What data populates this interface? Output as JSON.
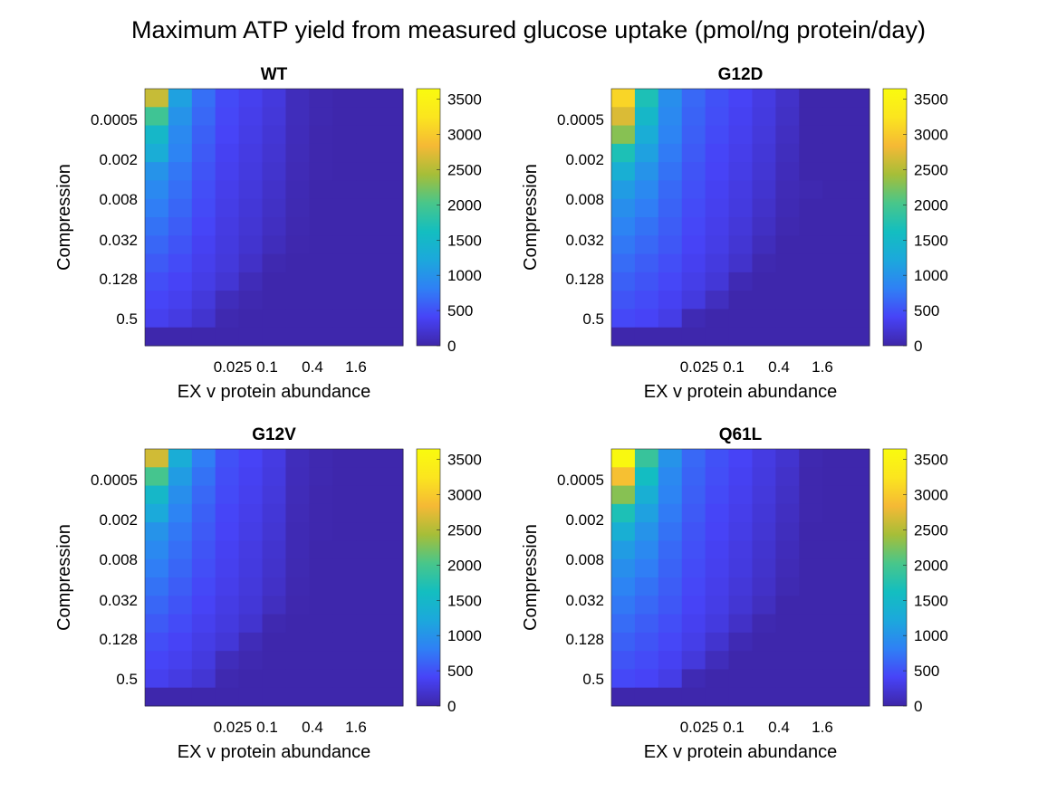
{
  "figure_title": "Maximum ATP yield from measured glucose uptake (pmol/ng protein/day)",
  "colormap": [
    "#3e26a8",
    "#4743f7",
    "#2f80f5",
    "#1ca8dc",
    "#13bec0",
    "#49c68a",
    "#a6be38",
    "#f5b935",
    "#fbe51f",
    "#f9fb0e"
  ],
  "chart_data": [
    {
      "type": "heatmap",
      "title": "WT",
      "xlabel": "EX v protein abundance",
      "ylabel": "Compression",
      "xticklabels": [
        "0.025",
        "0.1",
        "0.4",
        "1.6"
      ],
      "yticklabels": [
        "0.0005",
        "0.002",
        "0.008",
        "0.032",
        "0.128",
        "0.5"
      ],
      "colorbar": {
        "ticks": [
          "0",
          "500",
          "1000",
          "1500",
          "2000",
          "2500",
          "3000",
          "3500"
        ],
        "clim": [
          0,
          3650
        ]
      },
      "z": [
        [
          2600,
          1150,
          700,
          450,
          360,
          270,
          100,
          40,
          20,
          20,
          20
        ],
        [
          1950,
          1000,
          650,
          430,
          340,
          250,
          100,
          40,
          20,
          20,
          20
        ],
        [
          1500,
          900,
          600,
          410,
          320,
          230,
          90,
          30,
          20,
          20,
          20
        ],
        [
          1300,
          850,
          560,
          380,
          300,
          210,
          80,
          30,
          20,
          20,
          20
        ],
        [
          1000,
          750,
          520,
          360,
          280,
          190,
          70,
          30,
          20,
          20,
          20
        ],
        [
          900,
          700,
          480,
          340,
          260,
          170,
          60,
          20,
          20,
          20,
          20
        ],
        [
          800,
          640,
          450,
          320,
          240,
          150,
          50,
          20,
          20,
          20,
          20
        ],
        [
          720,
          580,
          420,
          300,
          220,
          130,
          40,
          20,
          20,
          20,
          20
        ],
        [
          640,
          520,
          380,
          280,
          200,
          100,
          30,
          20,
          20,
          20,
          20
        ],
        [
          560,
          460,
          350,
          260,
          160,
          40,
          20,
          20,
          20,
          20,
          20
        ],
        [
          480,
          400,
          320,
          220,
          80,
          20,
          20,
          20,
          20,
          20,
          20
        ],
        [
          420,
          360,
          260,
          100,
          40,
          20,
          20,
          20,
          20,
          20,
          20
        ],
        [
          360,
          300,
          200,
          40,
          20,
          20,
          20,
          20,
          20,
          20,
          20
        ],
        [
          20,
          20,
          20,
          20,
          20,
          20,
          20,
          20,
          20,
          20,
          20
        ]
      ]
    },
    {
      "type": "heatmap",
      "title": "G12D",
      "xlabel": "EX v protein abundance",
      "ylabel": "Compression",
      "xticklabels": [
        "0.025",
        "0.1",
        "0.4",
        "1.6"
      ],
      "yticklabels": [
        "0.0005",
        "0.002",
        "0.008",
        "0.032",
        "0.128",
        "0.5"
      ],
      "colorbar": {
        "ticks": [
          "0",
          "500",
          "1000",
          "1500",
          "2000",
          "2500",
          "3000",
          "3500"
        ],
        "clim": [
          0,
          3650
        ]
      },
      "z": [
        [
          3100,
          1700,
          950,
          650,
          500,
          400,
          300,
          170,
          20,
          20,
          20
        ],
        [
          2700,
          1500,
          900,
          620,
          480,
          380,
          280,
          150,
          20,
          20,
          20
        ],
        [
          2300,
          1300,
          850,
          590,
          450,
          360,
          260,
          130,
          20,
          20,
          20
        ],
        [
          1700,
          1150,
          780,
          560,
          420,
          340,
          240,
          110,
          20,
          20,
          20
        ],
        [
          1350,
          1000,
          720,
          520,
          400,
          320,
          220,
          90,
          20,
          20,
          20
        ],
        [
          1100,
          900,
          660,
          490,
          380,
          300,
          200,
          70,
          40,
          20,
          20
        ],
        [
          950,
          800,
          620,
          460,
          360,
          280,
          170,
          60,
          20,
          20,
          20
        ],
        [
          850,
          720,
          580,
          430,
          340,
          250,
          140,
          40,
          20,
          20,
          20
        ],
        [
          760,
          650,
          540,
          400,
          320,
          220,
          100,
          20,
          20,
          20,
          20
        ],
        [
          680,
          580,
          480,
          370,
          280,
          180,
          40,
          20,
          20,
          20,
          20
        ],
        [
          600,
          520,
          430,
          330,
          240,
          60,
          20,
          20,
          20,
          20,
          20
        ],
        [
          520,
          460,
          380,
          280,
          120,
          20,
          20,
          20,
          20,
          20,
          20
        ],
        [
          440,
          400,
          320,
          60,
          20,
          20,
          20,
          20,
          20,
          20,
          20
        ],
        [
          20,
          20,
          20,
          20,
          20,
          20,
          20,
          20,
          20,
          20,
          20
        ]
      ]
    },
    {
      "type": "heatmap",
      "title": "G12V",
      "xlabel": "EX v protein abundance",
      "ylabel": "Compression",
      "xticklabels": [
        "0.025",
        "0.1",
        "0.4",
        "1.6"
      ],
      "yticklabels": [
        "0.0005",
        "0.002",
        "0.008",
        "0.032",
        "0.128",
        "0.5"
      ],
      "colorbar": {
        "ticks": [
          "0",
          "500",
          "1000",
          "1500",
          "2000",
          "2500",
          "3000",
          "3500"
        ],
        "clim": [
          0,
          3650
        ]
      },
      "z": [
        [
          2650,
          1300,
          800,
          500,
          400,
          300,
          100,
          40,
          20,
          20,
          20
        ],
        [
          2000,
          1100,
          720,
          470,
          380,
          280,
          90,
          40,
          20,
          20,
          20
        ],
        [
          1500,
          950,
          650,
          450,
          360,
          260,
          80,
          30,
          20,
          20,
          20
        ],
        [
          1250,
          850,
          600,
          420,
          340,
          240,
          70,
          30,
          20,
          20,
          20
        ],
        [
          1000,
          760,
          560,
          400,
          320,
          220,
          60,
          30,
          20,
          20,
          20
        ],
        [
          900,
          700,
          520,
          380,
          300,
          200,
          60,
          20,
          20,
          20,
          20
        ],
        [
          800,
          640,
          480,
          360,
          280,
          180,
          50,
          20,
          20,
          20,
          20
        ],
        [
          720,
          580,
          440,
          340,
          260,
          160,
          40,
          20,
          20,
          20,
          20
        ],
        [
          640,
          520,
          400,
          310,
          240,
          120,
          30,
          20,
          20,
          20,
          20
        ],
        [
          560,
          460,
          360,
          280,
          200,
          40,
          20,
          20,
          20,
          20,
          20
        ],
        [
          480,
          400,
          320,
          240,
          80,
          20,
          20,
          20,
          20,
          20,
          20
        ],
        [
          420,
          360,
          280,
          100,
          40,
          20,
          20,
          20,
          20,
          20,
          20
        ],
        [
          360,
          300,
          220,
          40,
          20,
          20,
          20,
          20,
          20,
          20,
          20
        ],
        [
          20,
          20,
          20,
          20,
          20,
          20,
          20,
          20,
          20,
          20,
          20
        ]
      ]
    },
    {
      "type": "heatmap",
      "title": "Q61L",
      "xlabel": "EX v protein abundance",
      "ylabel": "Compression",
      "xticklabels": [
        "0.025",
        "0.1",
        "0.4",
        "1.6"
      ],
      "yticklabels": [
        "0.0005",
        "0.002",
        "0.008",
        "0.032",
        "0.128",
        "0.5"
      ],
      "colorbar": {
        "ticks": [
          "0",
          "500",
          "1000",
          "1500",
          "2000",
          "2500",
          "3000",
          "3500"
        ],
        "clim": [
          0,
          3650
        ]
      },
      "z": [
        [
          3600,
          1900,
          1000,
          650,
          500,
          400,
          300,
          200,
          40,
          20,
          20
        ],
        [
          2900,
          1600,
          900,
          620,
          480,
          380,
          280,
          170,
          30,
          20,
          20
        ],
        [
          2300,
          1350,
          850,
          590,
          450,
          360,
          260,
          150,
          30,
          20,
          20
        ],
        [
          1700,
          1150,
          780,
          560,
          420,
          340,
          240,
          130,
          30,
          20,
          20
        ],
        [
          1350,
          1000,
          720,
          520,
          400,
          320,
          220,
          110,
          20,
          20,
          20
        ],
        [
          1100,
          900,
          660,
          490,
          380,
          300,
          200,
          90,
          20,
          20,
          20
        ],
        [
          950,
          800,
          620,
          460,
          360,
          280,
          180,
          70,
          20,
          20,
          20
        ],
        [
          850,
          720,
          580,
          430,
          340,
          250,
          160,
          50,
          20,
          20,
          20
        ],
        [
          760,
          650,
          540,
          400,
          320,
          220,
          120,
          20,
          20,
          20,
          20
        ],
        [
          680,
          580,
          480,
          370,
          280,
          160,
          40,
          20,
          20,
          20,
          20
        ],
        [
          600,
          520,
          430,
          330,
          200,
          60,
          20,
          20,
          20,
          20,
          20
        ],
        [
          520,
          460,
          380,
          260,
          100,
          20,
          20,
          20,
          20,
          20,
          20
        ],
        [
          440,
          400,
          320,
          60,
          20,
          20,
          20,
          20,
          20,
          20,
          20
        ],
        [
          20,
          20,
          20,
          20,
          20,
          20,
          20,
          20,
          20,
          20,
          20
        ]
      ]
    }
  ]
}
